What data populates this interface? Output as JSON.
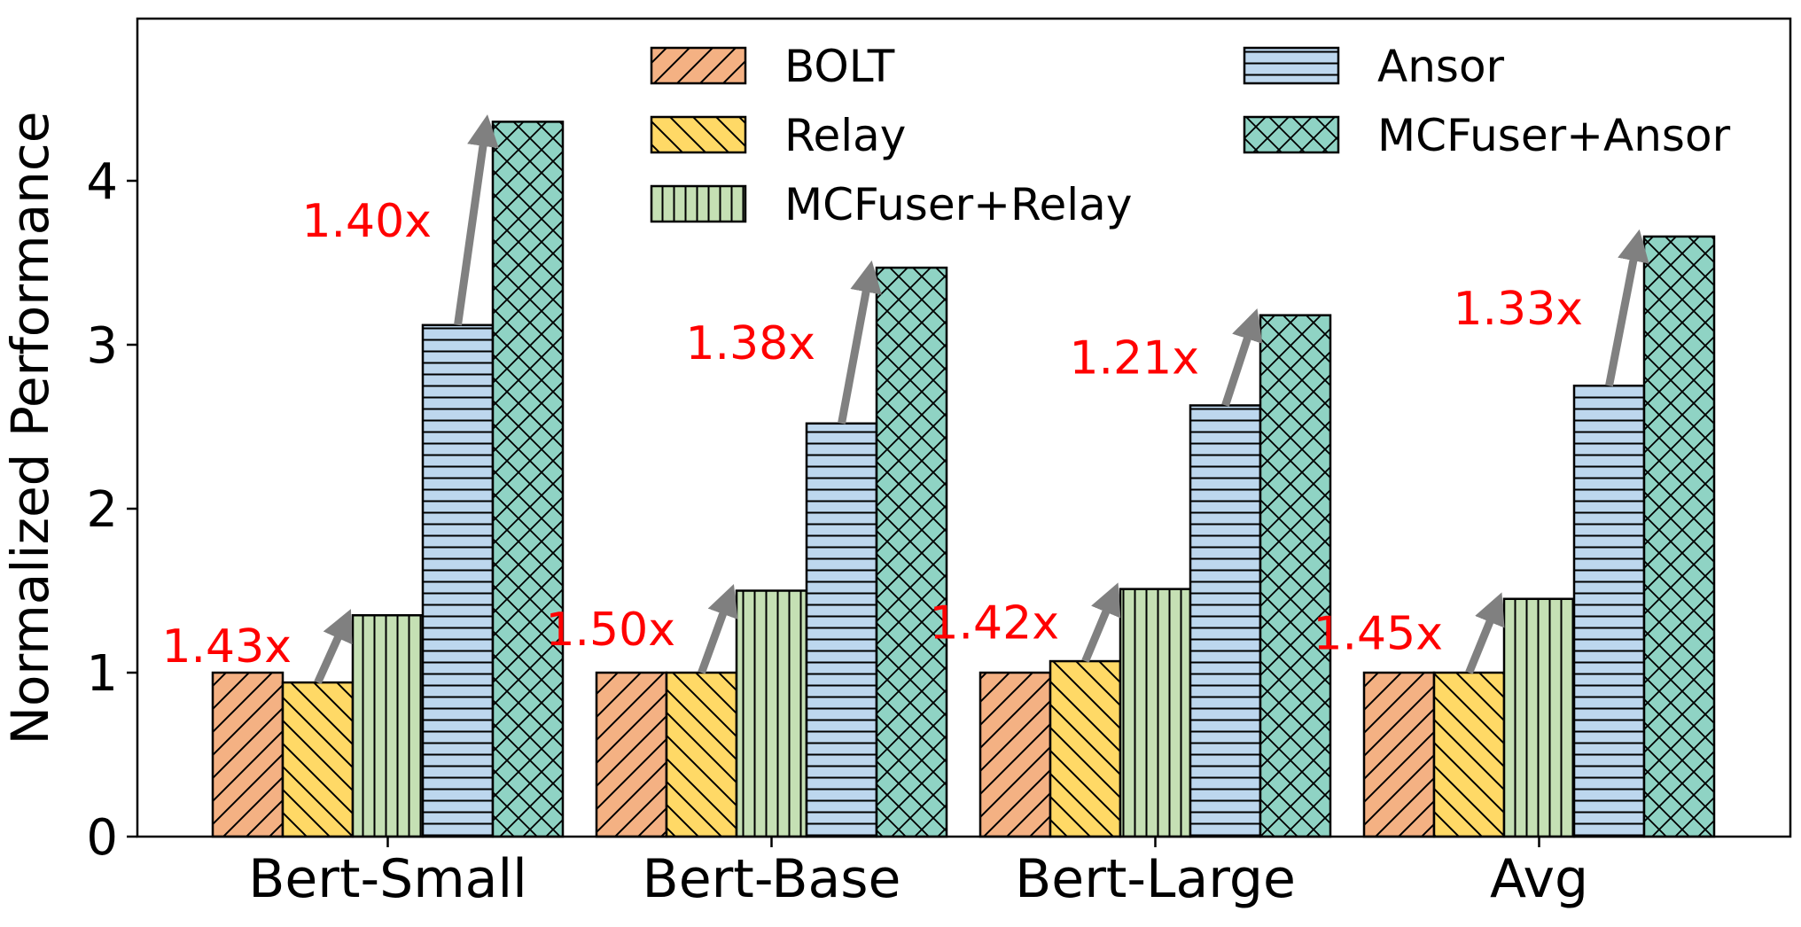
{
  "chart_data": {
    "type": "bar",
    "ylabel": "Normalized Performance",
    "xlabel": "",
    "ylim": [
      0,
      5
    ],
    "yticks": [
      "0",
      "1",
      "2",
      "3",
      "4"
    ],
    "categories": [
      "Bert-Small",
      "Bert-Base",
      "Bert-Large",
      "Avg"
    ],
    "series": [
      {
        "name": "BOLT",
        "values": [
          1.0,
          1.0,
          1.0,
          1.0
        ],
        "color": "#f4b183",
        "hatch": "diag-fwd"
      },
      {
        "name": "Relay",
        "values": [
          0.94,
          1.0,
          1.07,
          1.0
        ],
        "color": "#ffd966",
        "hatch": "diag-back"
      },
      {
        "name": "MCFuser+Relay",
        "values": [
          1.35,
          1.5,
          1.51,
          1.45
        ],
        "color": "#c5e0b4",
        "hatch": "vertical"
      },
      {
        "name": "Ansor",
        "values": [
          3.12,
          2.52,
          2.63,
          2.75
        ],
        "color": "#bdd7ee",
        "hatch": "horizontal"
      },
      {
        "name": "MCFuser+Ansor",
        "values": [
          4.36,
          3.47,
          3.18,
          3.66
        ],
        "color": "#8fd3c4",
        "hatch": "cross"
      }
    ],
    "annotations": [
      {
        "group": 0,
        "from_series": 1,
        "to_series": 2,
        "label": "1.43x"
      },
      {
        "group": 0,
        "from_series": 3,
        "to_series": 4,
        "label": "1.40x"
      },
      {
        "group": 1,
        "from_series": 1,
        "to_series": 2,
        "label": "1.50x"
      },
      {
        "group": 1,
        "from_series": 3,
        "to_series": 4,
        "label": "1.38x"
      },
      {
        "group": 2,
        "from_series": 1,
        "to_series": 2,
        "label": "1.42x"
      },
      {
        "group": 2,
        "from_series": 3,
        "to_series": 4,
        "label": "1.21x"
      },
      {
        "group": 3,
        "from_series": 1,
        "to_series": 2,
        "label": "1.45x"
      },
      {
        "group": 3,
        "from_series": 3,
        "to_series": 4,
        "label": "1.33x"
      }
    ],
    "legend_position": "top",
    "annotation_color": "#ff0000",
    "arrow_color": "#808080",
    "grid": false
  }
}
